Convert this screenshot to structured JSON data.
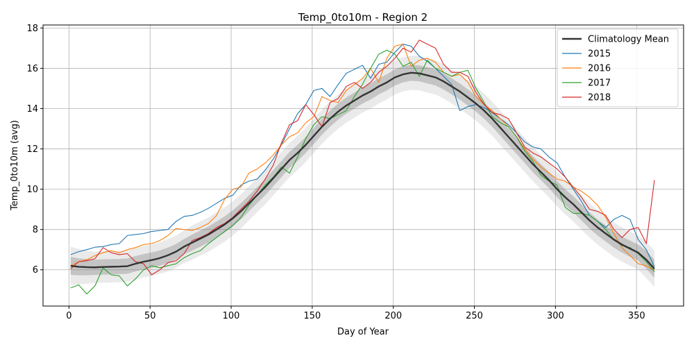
{
  "chart_data": {
    "type": "line",
    "title": "Temp_0to10m - Region 2",
    "xlabel": "Day of Year",
    "ylabel": "Temp_0to10m (avg)",
    "xlim": [
      -16,
      379
    ],
    "ylim": [
      4.2,
      18.15
    ],
    "xticks": [
      0,
      50,
      100,
      150,
      200,
      250,
      300,
      350
    ],
    "yticks": [
      6,
      8,
      10,
      12,
      14,
      16,
      18
    ],
    "grid": true,
    "legend_position": "top-right",
    "climatology": {
      "name": "Climatology Mean",
      "color": "#333333",
      "x": [
        1,
        6,
        11,
        16,
        21,
        26,
        31,
        36,
        41,
        46,
        51,
        56,
        61,
        66,
        71,
        76,
        81,
        86,
        91,
        96,
        101,
        106,
        111,
        116,
        121,
        126,
        131,
        136,
        141,
        146,
        151,
        156,
        161,
        166,
        171,
        176,
        181,
        186,
        191,
        196,
        201,
        206,
        211,
        216,
        221,
        226,
        231,
        236,
        241,
        246,
        251,
        256,
        261,
        266,
        271,
        276,
        281,
        286,
        291,
        296,
        301,
        306,
        311,
        316,
        321,
        326,
        331,
        336,
        341,
        346,
        351,
        356,
        361
      ],
      "mean": [
        6.2,
        6.15,
        6.13,
        6.12,
        6.14,
        6.15,
        6.16,
        6.18,
        6.3,
        6.4,
        6.48,
        6.58,
        6.72,
        6.9,
        7.15,
        7.35,
        7.55,
        7.75,
        8.0,
        8.25,
        8.55,
        8.9,
        9.3,
        9.7,
        10.1,
        10.55,
        11.0,
        11.45,
        11.8,
        12.2,
        12.65,
        13.1,
        13.5,
        13.85,
        14.15,
        14.4,
        14.65,
        14.85,
        15.1,
        15.3,
        15.55,
        15.7,
        15.78,
        15.75,
        15.65,
        15.55,
        15.35,
        15.1,
        14.85,
        14.55,
        14.25,
        13.9,
        13.5,
        13.05,
        12.6,
        12.15,
        11.7,
        11.25,
        10.85,
        10.45,
        10.0,
        9.6,
        9.25,
        8.85,
        8.45,
        8.1,
        7.8,
        7.5,
        7.25,
        7.05,
        6.85,
        6.5,
        6.05
      ],
      "band_inner": [
        0.45,
        0.42,
        0.4,
        0.38,
        0.38,
        0.38,
        0.38,
        0.38,
        0.38,
        0.38,
        0.38,
        0.38,
        0.38,
        0.38,
        0.38,
        0.4,
        0.4,
        0.4,
        0.4,
        0.4,
        0.4,
        0.4,
        0.4,
        0.4,
        0.4,
        0.4,
        0.4,
        0.4,
        0.4,
        0.4,
        0.4,
        0.4,
        0.4,
        0.4,
        0.4,
        0.4,
        0.4,
        0.4,
        0.4,
        0.4,
        0.4,
        0.4,
        0.4,
        0.4,
        0.4,
        0.4,
        0.4,
        0.4,
        0.4,
        0.4,
        0.4,
        0.4,
        0.4,
        0.4,
        0.4,
        0.4,
        0.4,
        0.4,
        0.4,
        0.4,
        0.4,
        0.4,
        0.4,
        0.4,
        0.4,
        0.4,
        0.4,
        0.4,
        0.4,
        0.4,
        0.4,
        0.45,
        0.45
      ],
      "band_outer": [
        0.95,
        0.88,
        0.82,
        0.78,
        0.78,
        0.78,
        0.78,
        0.78,
        0.78,
        0.78,
        0.78,
        0.78,
        0.8,
        0.8,
        0.8,
        0.85,
        0.85,
        0.85,
        0.85,
        0.85,
        0.85,
        0.85,
        0.85,
        0.85,
        0.85,
        0.85,
        0.85,
        0.85,
        0.85,
        0.85,
        0.85,
        0.85,
        0.85,
        0.85,
        0.85,
        0.85,
        0.85,
        0.85,
        0.85,
        0.85,
        0.85,
        0.85,
        0.85,
        0.85,
        0.85,
        0.85,
        0.85,
        0.85,
        0.85,
        0.85,
        0.85,
        0.85,
        0.85,
        0.85,
        0.85,
        0.85,
        0.85,
        0.85,
        0.85,
        0.85,
        0.85,
        0.85,
        0.85,
        0.85,
        0.85,
        0.85,
        0.85,
        0.85,
        0.85,
        0.85,
        0.85,
        0.9,
        0.9
      ]
    },
    "series": [
      {
        "name": "2015",
        "color": "#1f77b4",
        "x": [
          1,
          6,
          11,
          16,
          21,
          26,
          31,
          36,
          41,
          46,
          51,
          56,
          61,
          66,
          71,
          76,
          81,
          86,
          91,
          96,
          101,
          106,
          111,
          116,
          121,
          126,
          131,
          136,
          141,
          146,
          151,
          156,
          161,
          166,
          171,
          176,
          181,
          186,
          191,
          196,
          201,
          206,
          211,
          216,
          221,
          226,
          231,
          236,
          241,
          246,
          251,
          256,
          261,
          266,
          271,
          276,
          281,
          286,
          291,
          296,
          301,
          306,
          311,
          316,
          321,
          326,
          331,
          336,
          341,
          346,
          351,
          356,
          361
        ],
        "y": [
          6.75,
          6.9,
          7.0,
          7.12,
          7.15,
          7.25,
          7.3,
          7.7,
          7.75,
          7.8,
          7.9,
          7.95,
          8.0,
          8.4,
          8.65,
          8.7,
          8.85,
          9.05,
          9.3,
          9.55,
          9.7,
          10.2,
          10.4,
          10.5,
          10.95,
          11.5,
          12.2,
          13.0,
          13.75,
          14.2,
          14.9,
          15.0,
          14.6,
          15.2,
          15.75,
          15.95,
          16.15,
          15.5,
          16.2,
          16.3,
          16.8,
          17.2,
          17.1,
          16.6,
          16.35,
          16.0,
          15.6,
          15.2,
          13.9,
          14.1,
          14.2,
          14.05,
          13.8,
          13.5,
          13.2,
          12.8,
          12.35,
          12.1,
          12.0,
          11.6,
          11.3,
          10.6,
          10.0,
          9.4,
          8.7,
          8.4,
          8.1,
          8.5,
          8.7,
          8.5,
          7.5,
          7.0,
          6.15
        ]
      },
      {
        "name": "2016",
        "color": "#ff7f0e",
        "x": [
          1,
          6,
          11,
          16,
          21,
          26,
          31,
          36,
          41,
          46,
          51,
          56,
          61,
          66,
          71,
          76,
          81,
          86,
          91,
          96,
          101,
          106,
          111,
          116,
          121,
          126,
          131,
          136,
          141,
          146,
          151,
          156,
          161,
          166,
          171,
          176,
          181,
          186,
          191,
          196,
          201,
          206,
          211,
          216,
          221,
          226,
          231,
          236,
          241,
          246,
          251,
          256,
          261,
          266,
          271,
          276,
          281,
          286,
          291,
          296,
          301,
          306,
          311,
          316,
          321,
          326,
          331,
          336,
          341,
          346,
          351,
          356,
          361
        ],
        "y": [
          6.2,
          6.4,
          6.5,
          6.7,
          6.85,
          6.95,
          6.85,
          7.0,
          7.1,
          7.25,
          7.3,
          7.45,
          7.7,
          8.05,
          8.0,
          7.95,
          8.1,
          8.3,
          8.7,
          9.5,
          10.0,
          10.1,
          10.8,
          11.0,
          11.3,
          11.7,
          12.2,
          12.6,
          12.8,
          13.3,
          13.6,
          14.6,
          14.4,
          14.3,
          14.9,
          15.2,
          15.5,
          16.0,
          15.3,
          16.5,
          17.1,
          17.2,
          16.1,
          16.4,
          16.5,
          16.3,
          15.8,
          15.6,
          15.7,
          15.3,
          14.6,
          14.2,
          13.9,
          13.5,
          13.1,
          12.6,
          12.0,
          11.5,
          11.1,
          10.8,
          10.5,
          10.4,
          10.1,
          9.9,
          9.6,
          9.2,
          8.6,
          7.8,
          7.1,
          6.7,
          6.3,
          6.2,
          5.95
        ]
      },
      {
        "name": "2017",
        "color": "#2ca02c",
        "x": [
          1,
          6,
          11,
          16,
          21,
          26,
          31,
          36,
          41,
          46,
          51,
          56,
          61,
          66,
          71,
          76,
          81,
          86,
          91,
          96,
          101,
          106,
          111,
          116,
          121,
          126,
          131,
          136,
          141,
          146,
          151,
          156,
          161,
          166,
          171,
          176,
          181,
          186,
          191,
          196,
          201,
          206,
          211,
          216,
          221,
          226,
          231,
          236,
          241,
          246,
          251,
          256,
          261,
          266,
          271,
          276,
          281,
          286,
          291,
          296,
          301,
          306,
          311,
          316,
          321,
          326,
          331,
          336,
          341,
          346,
          351,
          356,
          361
        ],
        "y": [
          5.1,
          5.25,
          4.8,
          5.2,
          6.1,
          5.75,
          5.7,
          5.2,
          5.55,
          6.0,
          6.2,
          6.1,
          6.2,
          6.3,
          6.6,
          6.8,
          6.95,
          7.3,
          7.6,
          7.9,
          8.2,
          8.6,
          9.2,
          9.7,
          10.2,
          10.6,
          11.1,
          10.8,
          11.6,
          12.5,
          13.2,
          13.6,
          13.5,
          13.7,
          13.9,
          14.6,
          15.2,
          16.0,
          16.7,
          16.9,
          16.7,
          16.1,
          16.3,
          15.6,
          16.4,
          16.0,
          15.8,
          15.6,
          15.8,
          15.9,
          15.0,
          14.3,
          13.6,
          13.3,
          13.1,
          12.6,
          11.9,
          11.4,
          10.7,
          10.4,
          10.2,
          9.1,
          8.8,
          8.8,
          8.7,
          8.4,
          8.0,
          7.5,
          7.2,
          7.1,
          6.8,
          6.4,
          5.9
        ]
      },
      {
        "name": "2018",
        "color": "#d62728",
        "x": [
          1,
          6,
          11,
          16,
          21,
          26,
          31,
          36,
          41,
          46,
          51,
          56,
          61,
          66,
          71,
          76,
          81,
          86,
          91,
          96,
          101,
          106,
          111,
          116,
          121,
          126,
          131,
          136,
          141,
          146,
          151,
          156,
          161,
          166,
          171,
          176,
          181,
          186,
          191,
          196,
          201,
          206,
          211,
          216,
          221,
          226,
          231,
          236,
          241,
          246,
          251,
          256,
          261,
          266,
          271,
          276,
          281,
          286,
          291,
          296,
          301,
          306,
          311,
          316,
          321,
          326,
          331,
          336,
          341,
          346,
          351,
          356,
          361
        ],
        "y": [
          6.05,
          6.4,
          6.45,
          6.55,
          7.1,
          6.85,
          6.75,
          6.8,
          6.4,
          6.3,
          5.75,
          6.0,
          6.35,
          6.45,
          6.8,
          7.45,
          7.6,
          7.8,
          8.1,
          8.3,
          8.6,
          9.0,
          9.4,
          9.9,
          10.5,
          11.2,
          12.3,
          13.2,
          13.4,
          14.2,
          13.7,
          13.1,
          14.3,
          14.5,
          15.1,
          15.3,
          15.0,
          15.3,
          15.8,
          16.1,
          16.5,
          17.0,
          16.8,
          17.4,
          17.2,
          17.0,
          16.2,
          15.8,
          15.8,
          15.6,
          14.8,
          14.2,
          13.8,
          13.7,
          13.5,
          12.8,
          12.1,
          11.8,
          11.6,
          11.3,
          11.0,
          10.6,
          10.1,
          9.6,
          9.0,
          8.9,
          8.7,
          8.0,
          7.6,
          8.0,
          8.1,
          7.3,
          10.45
        ]
      }
    ]
  }
}
